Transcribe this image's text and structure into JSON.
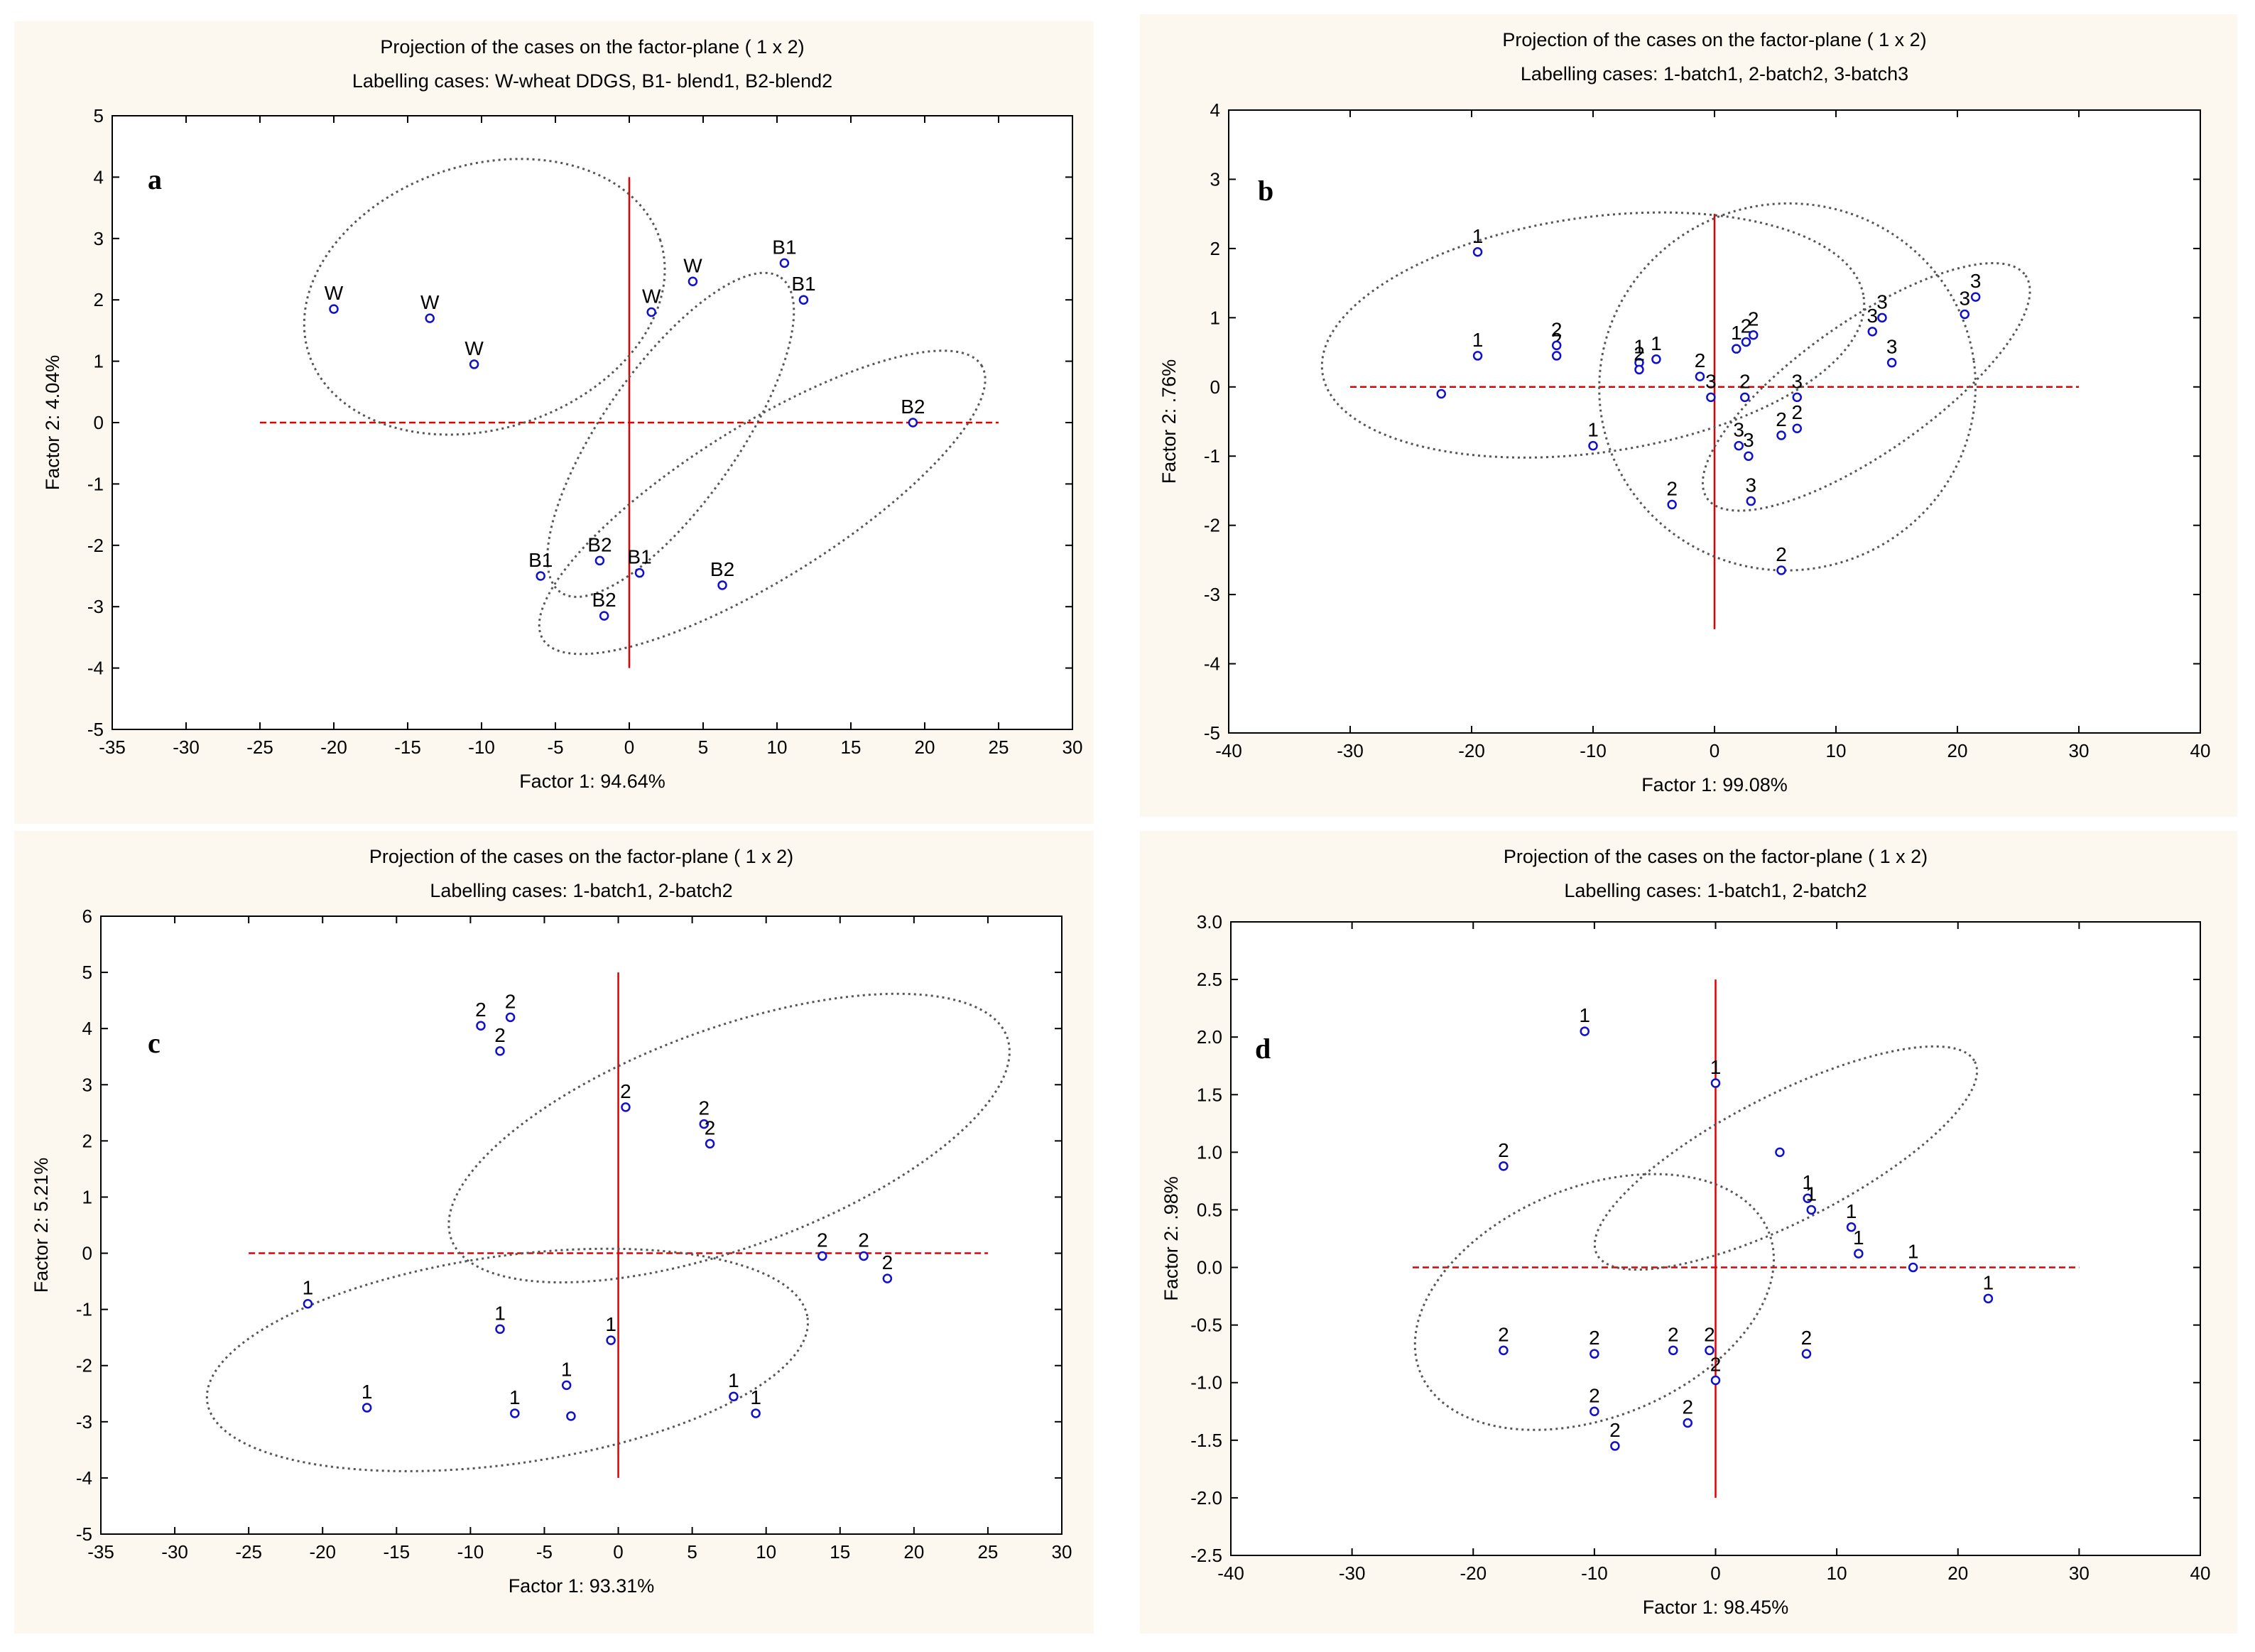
{
  "figure": {
    "background": "#ffffff",
    "panel_bg": "#fdf8ef"
  },
  "colors": {
    "frame": "#000000",
    "refline": "#e00000",
    "point": "#1010cc",
    "ellipse": "#555555",
    "text": "#000000"
  },
  "chart_data": [
    {
      "panel": "a",
      "type": "scatter",
      "title": "Projection of the cases on the factor-plane (  1 x    2)",
      "subtitle": "Labelling cases: W-wheat DDGS, B1- blend1, B2-blend2",
      "xlabel": "Factor 1:  94.64%",
      "ylabel": "Factor 2:   4.04%",
      "xlim": [
        -35,
        30
      ],
      "ylim": [
        -5,
        5
      ],
      "xticks": [
        -35,
        -30,
        -25,
        -20,
        -15,
        -10,
        -5,
        0,
        5,
        10,
        15,
        20,
        25,
        30
      ],
      "yticks": [
        -5,
        -4,
        -3,
        -2,
        -1,
        0,
        1,
        2,
        3,
        4,
        5
      ],
      "ref_h": {
        "y": 0,
        "x": [
          -25,
          25
        ]
      },
      "ref_v": {
        "x": 0,
        "y": [
          -4,
          4
        ]
      },
      "points": [
        {
          "x": -20,
          "y": 1.85,
          "label": "W"
        },
        {
          "x": -13.5,
          "y": 1.7,
          "label": "W"
        },
        {
          "x": -10.5,
          "y": 0.95,
          "label": "W"
        },
        {
          "x": 1.5,
          "y": 1.8,
          "label": "W"
        },
        {
          "x": 4.3,
          "y": 2.3,
          "label": "W"
        },
        {
          "x": 10.5,
          "y": 2.6,
          "label": "B1"
        },
        {
          "x": 11.8,
          "y": 2.0,
          "label": "B1"
        },
        {
          "x": 19.2,
          "y": 0.0,
          "label": "B2"
        },
        {
          "x": -6.0,
          "y": -2.5,
          "label": "B1"
        },
        {
          "x": -2.0,
          "y": -2.25,
          "label": "B2"
        },
        {
          "x": 0.7,
          "y": -2.45,
          "label": "B1"
        },
        {
          "x": -1.7,
          "y": -3.15,
          "label": "B2"
        },
        {
          "x": 6.3,
          "y": -2.65,
          "label": "B2"
        }
      ],
      "ellipses": [
        {
          "cx": -9.8,
          "cy": 2.05,
          "rx": 12.5,
          "ry": 2.15,
          "angle": -18
        },
        {
          "cx": 2.8,
          "cy": -0.2,
          "rx": 13.0,
          "ry": 1.1,
          "angle": -55
        },
        {
          "cx": 9.0,
          "cy": -1.3,
          "rx": 17.5,
          "ry": 1.25,
          "angle": -32
        }
      ]
    },
    {
      "panel": "b",
      "type": "scatter",
      "title": "Projection of the cases on the factor-plane (  1 x    2)",
      "subtitle": "Labelling cases: 1-batch1, 2-batch2, 3-batch3",
      "xlabel": "Factor 1:  99.08%",
      "ylabel": "Factor 2:   .76%",
      "xlim": [
        -40,
        40
      ],
      "ylim": [
        -5,
        4
      ],
      "xticks": [
        -40,
        -30,
        -20,
        -10,
        0,
        10,
        20,
        30,
        40
      ],
      "yticks": [
        -5,
        -4,
        -3,
        -2,
        -1,
        0,
        1,
        2,
        3,
        4
      ],
      "ref_h": {
        "y": 0,
        "x": [
          -30,
          30
        ]
      },
      "ref_v": {
        "x": 0,
        "y": [
          -3.5,
          2.5
        ]
      },
      "points": [
        {
          "x": -19.5,
          "y": 1.95,
          "label": "1"
        },
        {
          "x": -19.5,
          "y": 0.45,
          "label": "1"
        },
        {
          "x": -22.5,
          "y": -0.1,
          "label": ""
        },
        {
          "x": -13,
          "y": 0.45,
          "label": "2"
        },
        {
          "x": -13,
          "y": 0.6,
          "label": "2"
        },
        {
          "x": -6.2,
          "y": 0.35,
          "label": "1"
        },
        {
          "x": -6.2,
          "y": 0.25,
          "label": "2"
        },
        {
          "x": -4.8,
          "y": 0.4,
          "label": "1"
        },
        {
          "x": -1.2,
          "y": 0.15,
          "label": "2"
        },
        {
          "x": -0.3,
          "y": -0.15,
          "label": "3"
        },
        {
          "x": 1.8,
          "y": 0.55,
          "label": "1"
        },
        {
          "x": 2.6,
          "y": 0.65,
          "label": "2"
        },
        {
          "x": 3.2,
          "y": 0.75,
          "label": "2"
        },
        {
          "x": 2.5,
          "y": -0.15,
          "label": "2"
        },
        {
          "x": -10,
          "y": -0.85,
          "label": "1"
        },
        {
          "x": 2.0,
          "y": -0.85,
          "label": "3"
        },
        {
          "x": 2.8,
          "y": -1.0,
          "label": "3"
        },
        {
          "x": 3.0,
          "y": -1.65,
          "label": "3"
        },
        {
          "x": -3.5,
          "y": -1.7,
          "label": "2"
        },
        {
          "x": 5.5,
          "y": -2.65,
          "label": "2"
        },
        {
          "x": 5.5,
          "y": -0.7,
          "label": "2"
        },
        {
          "x": 6.8,
          "y": -0.6,
          "label": "2"
        },
        {
          "x": 6.8,
          "y": -0.15,
          "label": "3"
        },
        {
          "x": 13,
          "y": 0.8,
          "label": "3"
        },
        {
          "x": 13.8,
          "y": 1.0,
          "label": "3"
        },
        {
          "x": 14.6,
          "y": 0.35,
          "label": "3"
        },
        {
          "x": 20.6,
          "y": 1.05,
          "label": "3"
        },
        {
          "x": 21.5,
          "y": 1.3,
          "label": "3"
        }
      ],
      "ellipses": [
        {
          "cx": -10,
          "cy": 0.75,
          "rx": 22.5,
          "ry": 1.7,
          "angle": -8
        },
        {
          "cx": 6.0,
          "cy": 0.0,
          "rx": 15.5,
          "ry": 2.65,
          "angle": -8
        },
        {
          "cx": 12.5,
          "cy": 0.0,
          "rx": 16.0,
          "ry": 0.95,
          "angle": -35
        }
      ]
    },
    {
      "panel": "c",
      "type": "scatter",
      "title": "Projection of the cases on the factor-plane (  1 x    2)",
      "subtitle": "Labelling cases: 1-batch1, 2-batch2",
      "xlabel": "Factor 1:  93.31%",
      "ylabel": "Factor 2:   5.21%",
      "xlim": [
        -35,
        30
      ],
      "ylim": [
        -5,
        6
      ],
      "xticks": [
        -35,
        -30,
        -25,
        -20,
        -15,
        -10,
        -5,
        0,
        5,
        10,
        15,
        20,
        25,
        30
      ],
      "yticks": [
        -5,
        -4,
        -3,
        -2,
        -1,
        0,
        1,
        2,
        3,
        4,
        5,
        6
      ],
      "ref_h": {
        "y": 0,
        "x": [
          -25,
          25
        ]
      },
      "ref_v": {
        "x": 0,
        "y": [
          -4,
          5
        ]
      },
      "points": [
        {
          "x": -9.3,
          "y": 4.05,
          "label": "2"
        },
        {
          "x": -7.3,
          "y": 4.2,
          "label": "2"
        },
        {
          "x": -8.0,
          "y": 3.6,
          "label": "2"
        },
        {
          "x": 0.5,
          "y": 2.6,
          "label": "2"
        },
        {
          "x": 5.8,
          "y": 2.3,
          "label": "2"
        },
        {
          "x": 6.2,
          "y": 1.95,
          "label": "2"
        },
        {
          "x": 13.8,
          "y": -0.05,
          "label": "2"
        },
        {
          "x": 16.6,
          "y": -0.05,
          "label": "2"
        },
        {
          "x": 18.2,
          "y": -0.45,
          "label": "2"
        },
        {
          "x": -21,
          "y": -0.9,
          "label": "1"
        },
        {
          "x": -17,
          "y": -2.75,
          "label": "1"
        },
        {
          "x": -8.0,
          "y": -1.35,
          "label": "1"
        },
        {
          "x": -0.5,
          "y": -1.55,
          "label": "1"
        },
        {
          "x": -7.0,
          "y": -2.85,
          "label": "1"
        },
        {
          "x": -3.5,
          "y": -2.35,
          "label": "1"
        },
        {
          "x": -3.2,
          "y": -2.9,
          "label": ""
        },
        {
          "x": 7.8,
          "y": -2.55,
          "label": "1"
        },
        {
          "x": 9.3,
          "y": -2.85,
          "label": "1"
        }
      ],
      "ellipses": [
        {
          "cx": 7.5,
          "cy": 2.05,
          "rx": 20.0,
          "ry": 1.95,
          "angle": -20
        },
        {
          "cx": -7.5,
          "cy": -1.9,
          "rx": 20.5,
          "ry": 1.85,
          "angle": -8
        }
      ]
    },
    {
      "panel": "d",
      "type": "scatter",
      "title": "Projection of the cases on the factor-plane (  1 x    2)",
      "subtitle": "Labelling cases: 1-batch1, 2-batch2",
      "xlabel": "Factor 1:  98.45%",
      "ylabel": "Factor 2:   .98%",
      "xlim": [
        -40,
        40
      ],
      "ylim": [
        -2.5,
        3.0
      ],
      "xticks": [
        -40,
        -30,
        -20,
        -10,
        0,
        10,
        20,
        30,
        40
      ],
      "yticks": [
        -2.5,
        -2.0,
        -1.5,
        -1.0,
        -0.5,
        0.0,
        0.5,
        1.0,
        1.5,
        2.0,
        2.5,
        3.0
      ],
      "ref_h": {
        "y": 0,
        "x": [
          -25,
          30
        ]
      },
      "ref_v": {
        "x": 0,
        "y": [
          -2.0,
          2.5
        ]
      },
      "points": [
        {
          "x": -10.8,
          "y": 2.05,
          "label": "1"
        },
        {
          "x": 0,
          "y": 1.6,
          "label": "1"
        },
        {
          "x": 5.3,
          "y": 1.0,
          "label": ""
        },
        {
          "x": 7.6,
          "y": 0.6,
          "label": "1"
        },
        {
          "x": 7.9,
          "y": 0.5,
          "label": "1"
        },
        {
          "x": 11.2,
          "y": 0.35,
          "label": "1"
        },
        {
          "x": 11.8,
          "y": 0.12,
          "label": "1"
        },
        {
          "x": 16.3,
          "y": 0.0,
          "label": "1"
        },
        {
          "x": 22.5,
          "y": -0.27,
          "label": "1"
        },
        {
          "x": -17.5,
          "y": 0.88,
          "label": "2"
        },
        {
          "x": -17.5,
          "y": -0.72,
          "label": "2"
        },
        {
          "x": -10,
          "y": -0.75,
          "label": "2"
        },
        {
          "x": -3.5,
          "y": -0.72,
          "label": "2"
        },
        {
          "x": -0.5,
          "y": -0.72,
          "label": "2"
        },
        {
          "x": 0,
          "y": -0.98,
          "label": "2"
        },
        {
          "x": 7.5,
          "y": -0.75,
          "label": "2"
        },
        {
          "x": -10,
          "y": -1.25,
          "label": "2"
        },
        {
          "x": -2.3,
          "y": -1.35,
          "label": "2"
        },
        {
          "x": -8.3,
          "y": -1.55,
          "label": "2"
        }
      ],
      "ellipses": [
        {
          "cx": 5.8,
          "cy": 0.95,
          "rx": 17.5,
          "ry": 0.55,
          "angle": -27
        },
        {
          "cx": -10.0,
          "cy": -0.3,
          "rx": 15.5,
          "ry": 1.0,
          "angle": -22
        }
      ]
    }
  ]
}
